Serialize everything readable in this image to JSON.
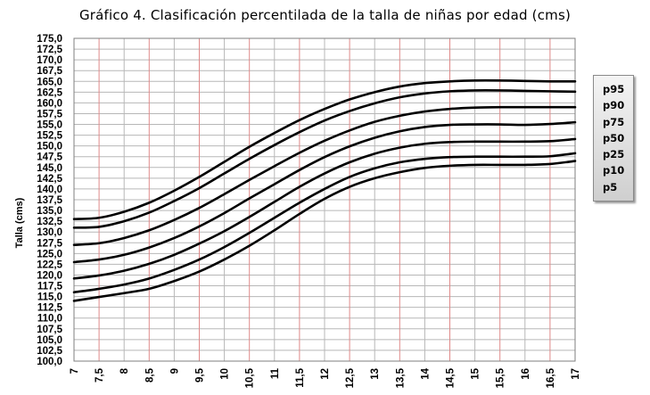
{
  "chart_data": {
    "type": "line",
    "title": "Gráfico 4. Clasificación percentilada de la talla de niñas por edad  (cms)",
    "xlabel": "",
    "ylabel": "Talla  (cms)",
    "xlim": [
      7,
      17
    ],
    "ylim": [
      100,
      175
    ],
    "x_ticks": [
      "7",
      "7,5",
      "8",
      "8,5",
      "9",
      "9,5",
      "10",
      "10,5",
      "11",
      "11,5",
      "12",
      "12,5",
      "13",
      "13,5",
      "14",
      "14,5",
      "15",
      "15,5",
      "16",
      "16,5",
      "17"
    ],
    "y_ticks": [
      "100,0",
      "102,5",
      "105,0",
      "107,5",
      "110,0",
      "112,5",
      "115,0",
      "117,5",
      "120,0",
      "122,5",
      "125,0",
      "127,5",
      "130,0",
      "132,5",
      "135,0",
      "137,5",
      "140,0",
      "142,5",
      "145,0",
      "147,5",
      "150,0",
      "152,5",
      "155,0",
      "157,5",
      "160,0",
      "162,5",
      "165,0",
      "167,5",
      "170,0",
      "172,5",
      "175,0"
    ],
    "grid": true,
    "legend_position": "right",
    "x": [
      7,
      7.5,
      8,
      8.5,
      9,
      9.5,
      10,
      10.5,
      11,
      11.5,
      12,
      12.5,
      13,
      13.5,
      14,
      14.5,
      15,
      15.5,
      16,
      16.5,
      17
    ],
    "series": [
      {
        "name": "p95",
        "values": [
          133.0,
          133.3,
          134.7,
          136.8,
          139.6,
          142.8,
          146.3,
          149.8,
          153.0,
          156.0,
          158.6,
          160.8,
          162.5,
          163.8,
          164.6,
          165.0,
          165.2,
          165.2,
          165.1,
          165.0,
          165.0
        ]
      },
      {
        "name": "p90",
        "values": [
          131.0,
          131.2,
          132.5,
          134.5,
          137.2,
          140.2,
          143.6,
          147.0,
          150.2,
          153.2,
          155.9,
          158.1,
          159.9,
          161.3,
          162.2,
          162.7,
          162.9,
          162.9,
          162.8,
          162.7,
          162.6
        ]
      },
      {
        "name": "p75",
        "values": [
          127.0,
          127.4,
          128.6,
          130.4,
          132.8,
          135.6,
          138.8,
          142.1,
          145.3,
          148.4,
          151.2,
          153.6,
          155.6,
          157.0,
          158.0,
          158.6,
          158.9,
          159.0,
          159.0,
          159.0,
          159.0
        ]
      },
      {
        "name": "p50",
        "values": [
          123.0,
          123.6,
          124.7,
          126.4,
          128.6,
          131.3,
          134.4,
          137.8,
          141.1,
          144.4,
          147.4,
          149.9,
          151.9,
          153.4,
          154.4,
          154.9,
          155.0,
          155.0,
          154.9,
          155.1,
          155.5
        ]
      },
      {
        "name": "p25",
        "values": [
          119.2,
          119.9,
          121.0,
          122.6,
          124.7,
          127.3,
          130.2,
          133.5,
          137.0,
          140.5,
          143.6,
          146.2,
          148.2,
          149.6,
          150.5,
          150.9,
          151.0,
          151.0,
          151.0,
          151.1,
          151.6
        ]
      },
      {
        "name": "p10",
        "values": [
          116.0,
          116.8,
          117.8,
          119.2,
          121.2,
          123.6,
          126.5,
          129.8,
          133.3,
          136.8,
          140.0,
          142.8,
          144.8,
          146.2,
          147.0,
          147.4,
          147.5,
          147.5,
          147.5,
          147.6,
          148.3
        ]
      },
      {
        "name": "p5",
        "values": [
          114.0,
          114.9,
          115.8,
          116.8,
          118.6,
          120.8,
          123.6,
          126.8,
          130.4,
          134.2,
          137.7,
          140.5,
          142.5,
          143.9,
          144.9,
          145.4,
          145.6,
          145.6,
          145.6,
          145.8,
          146.5
        ]
      }
    ],
    "line_color": "#000000",
    "major_grid_color": "#e08a8a",
    "minor_grid_color": "#b7b7b7"
  },
  "legend": {
    "entries": [
      "p95",
      "p90",
      "p75",
      "p50",
      "p25",
      "p10",
      "p5"
    ]
  }
}
